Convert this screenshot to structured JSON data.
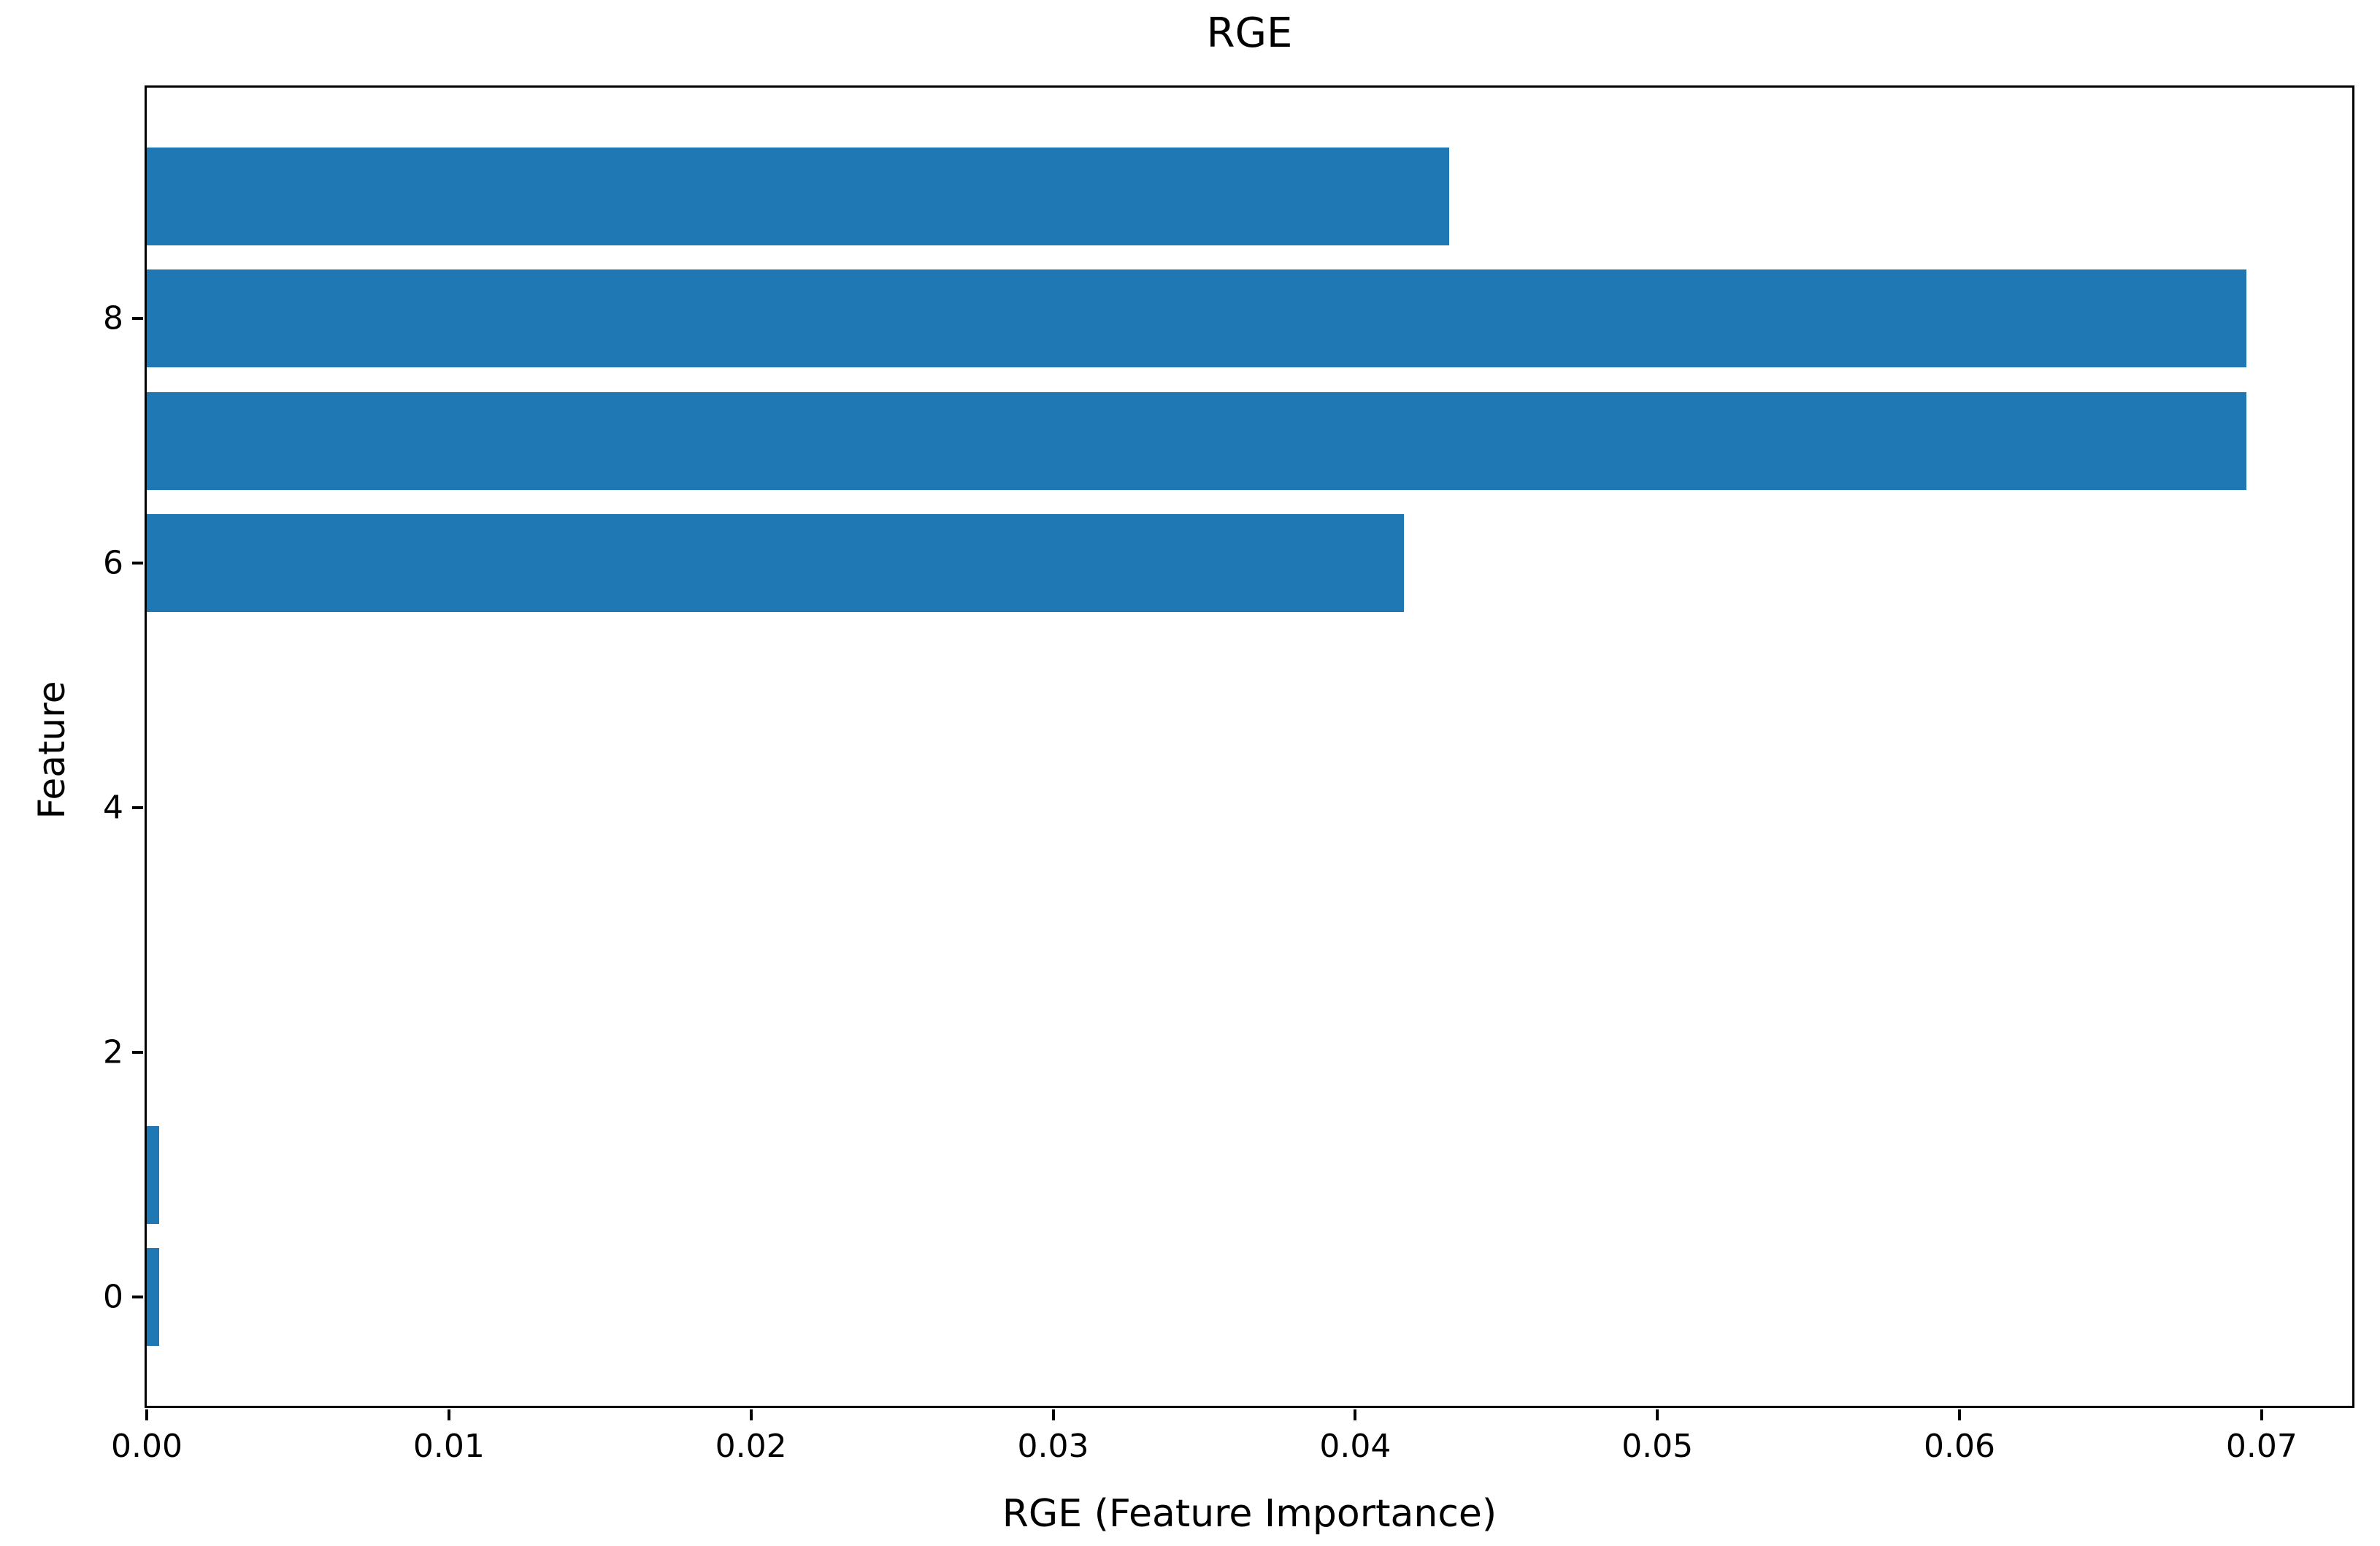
{
  "chart_data": {
    "type": "bar",
    "orientation": "horizontal",
    "title": "RGE",
    "xlabel": "RGE (Feature Importance)",
    "ylabel": "Feature",
    "categories": [
      0,
      1,
      2,
      3,
      4,
      5,
      6,
      7,
      8,
      9
    ],
    "values": [
      0.0004,
      0.0004,
      0,
      0,
      0,
      0,
      0.0416,
      0.0695,
      0.0695,
      0.0431
    ],
    "bar_color": "#1f77b4",
    "bar_height": 0.8,
    "xlim": [
      0,
      0.073
    ],
    "ylim": [
      -0.89,
      9.89
    ],
    "xticks": [
      {
        "value": 0.0,
        "label": "0.00"
      },
      {
        "value": 0.01,
        "label": "0.01"
      },
      {
        "value": 0.02,
        "label": "0.02"
      },
      {
        "value": 0.03,
        "label": "0.03"
      },
      {
        "value": 0.04,
        "label": "0.04"
      },
      {
        "value": 0.05,
        "label": "0.05"
      },
      {
        "value": 0.06,
        "label": "0.06"
      },
      {
        "value": 0.07,
        "label": "0.07"
      }
    ],
    "yticks": [
      {
        "value": 0,
        "label": "0"
      },
      {
        "value": 2,
        "label": "2"
      },
      {
        "value": 4,
        "label": "4"
      },
      {
        "value": 6,
        "label": "6"
      },
      {
        "value": 8,
        "label": "8"
      }
    ],
    "grid": false,
    "legend": null,
    "spine_color": "#000000",
    "background_color": "#ffffff"
  }
}
